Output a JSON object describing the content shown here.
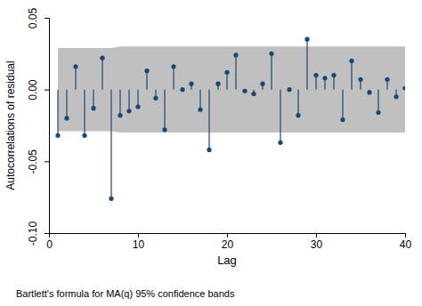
{
  "chart_data": {
    "type": "stem",
    "x_label": "Lag",
    "y_label": "Autocorrelations of residual",
    "note": "Bartlett's formula for MA(q) 95% confidence bands",
    "x": [
      1,
      2,
      3,
      4,
      5,
      6,
      7,
      8,
      9,
      10,
      11,
      12,
      13,
      14,
      15,
      16,
      17,
      18,
      19,
      20,
      21,
      22,
      23,
      24,
      25,
      26,
      27,
      28,
      29,
      30,
      31,
      32,
      33,
      34,
      35,
      36,
      37,
      38,
      39,
      40
    ],
    "values": [
      -0.032,
      -0.02,
      0.016,
      -0.032,
      -0.013,
      0.022,
      -0.076,
      -0.018,
      -0.015,
      -0.012,
      0.013,
      -0.006,
      -0.028,
      0.016,
      0.0,
      0.004,
      -0.014,
      -0.042,
      0.004,
      0.012,
      0.024,
      -0.001,
      -0.003,
      0.004,
      0.025,
      -0.037,
      0.0,
      -0.018,
      0.035,
      0.01,
      0.008,
      0.01,
      -0.021,
      0.02,
      0.007,
      -0.002,
      -0.016,
      0.007,
      -0.005,
      0.001
    ],
    "ci_lower": [
      -0.029,
      -0.029,
      -0.029,
      -0.029,
      -0.029,
      -0.029,
      -0.029,
      -0.03,
      -0.03,
      -0.03,
      -0.03,
      -0.03,
      -0.03,
      -0.03,
      -0.03,
      -0.03,
      -0.03,
      -0.03,
      -0.03,
      -0.03,
      -0.03,
      -0.03,
      -0.03,
      -0.03,
      -0.03,
      -0.03,
      -0.03,
      -0.03,
      -0.03,
      -0.03,
      -0.03,
      -0.03,
      -0.03,
      -0.03,
      -0.03,
      -0.03,
      -0.03,
      -0.03,
      -0.03,
      -0.03
    ],
    "ci_upper": [
      0.029,
      0.029,
      0.029,
      0.029,
      0.029,
      0.029,
      0.029,
      0.03,
      0.03,
      0.03,
      0.03,
      0.03,
      0.03,
      0.03,
      0.03,
      0.03,
      0.03,
      0.03,
      0.03,
      0.03,
      0.03,
      0.03,
      0.03,
      0.03,
      0.03,
      0.03,
      0.03,
      0.03,
      0.03,
      0.03,
      0.03,
      0.03,
      0.03,
      0.03,
      0.03,
      0.03,
      0.03,
      0.03,
      0.03,
      0.03
    ],
    "color": "#1a476f",
    "marker": "circle",
    "xlim": [
      0,
      40
    ],
    "xticks": [
      0,
      10,
      20,
      30,
      40
    ],
    "ylim": [
      -0.1,
      0.05
    ],
    "yticks": [
      {
        "value": -0.1,
        "label": "-0.10"
      },
      {
        "value": -0.05,
        "label": "-0.05"
      },
      {
        "value": 0,
        "label": "0.00"
      },
      {
        "value": 0.05,
        "label": "0.05"
      }
    ],
    "grid": false
  }
}
